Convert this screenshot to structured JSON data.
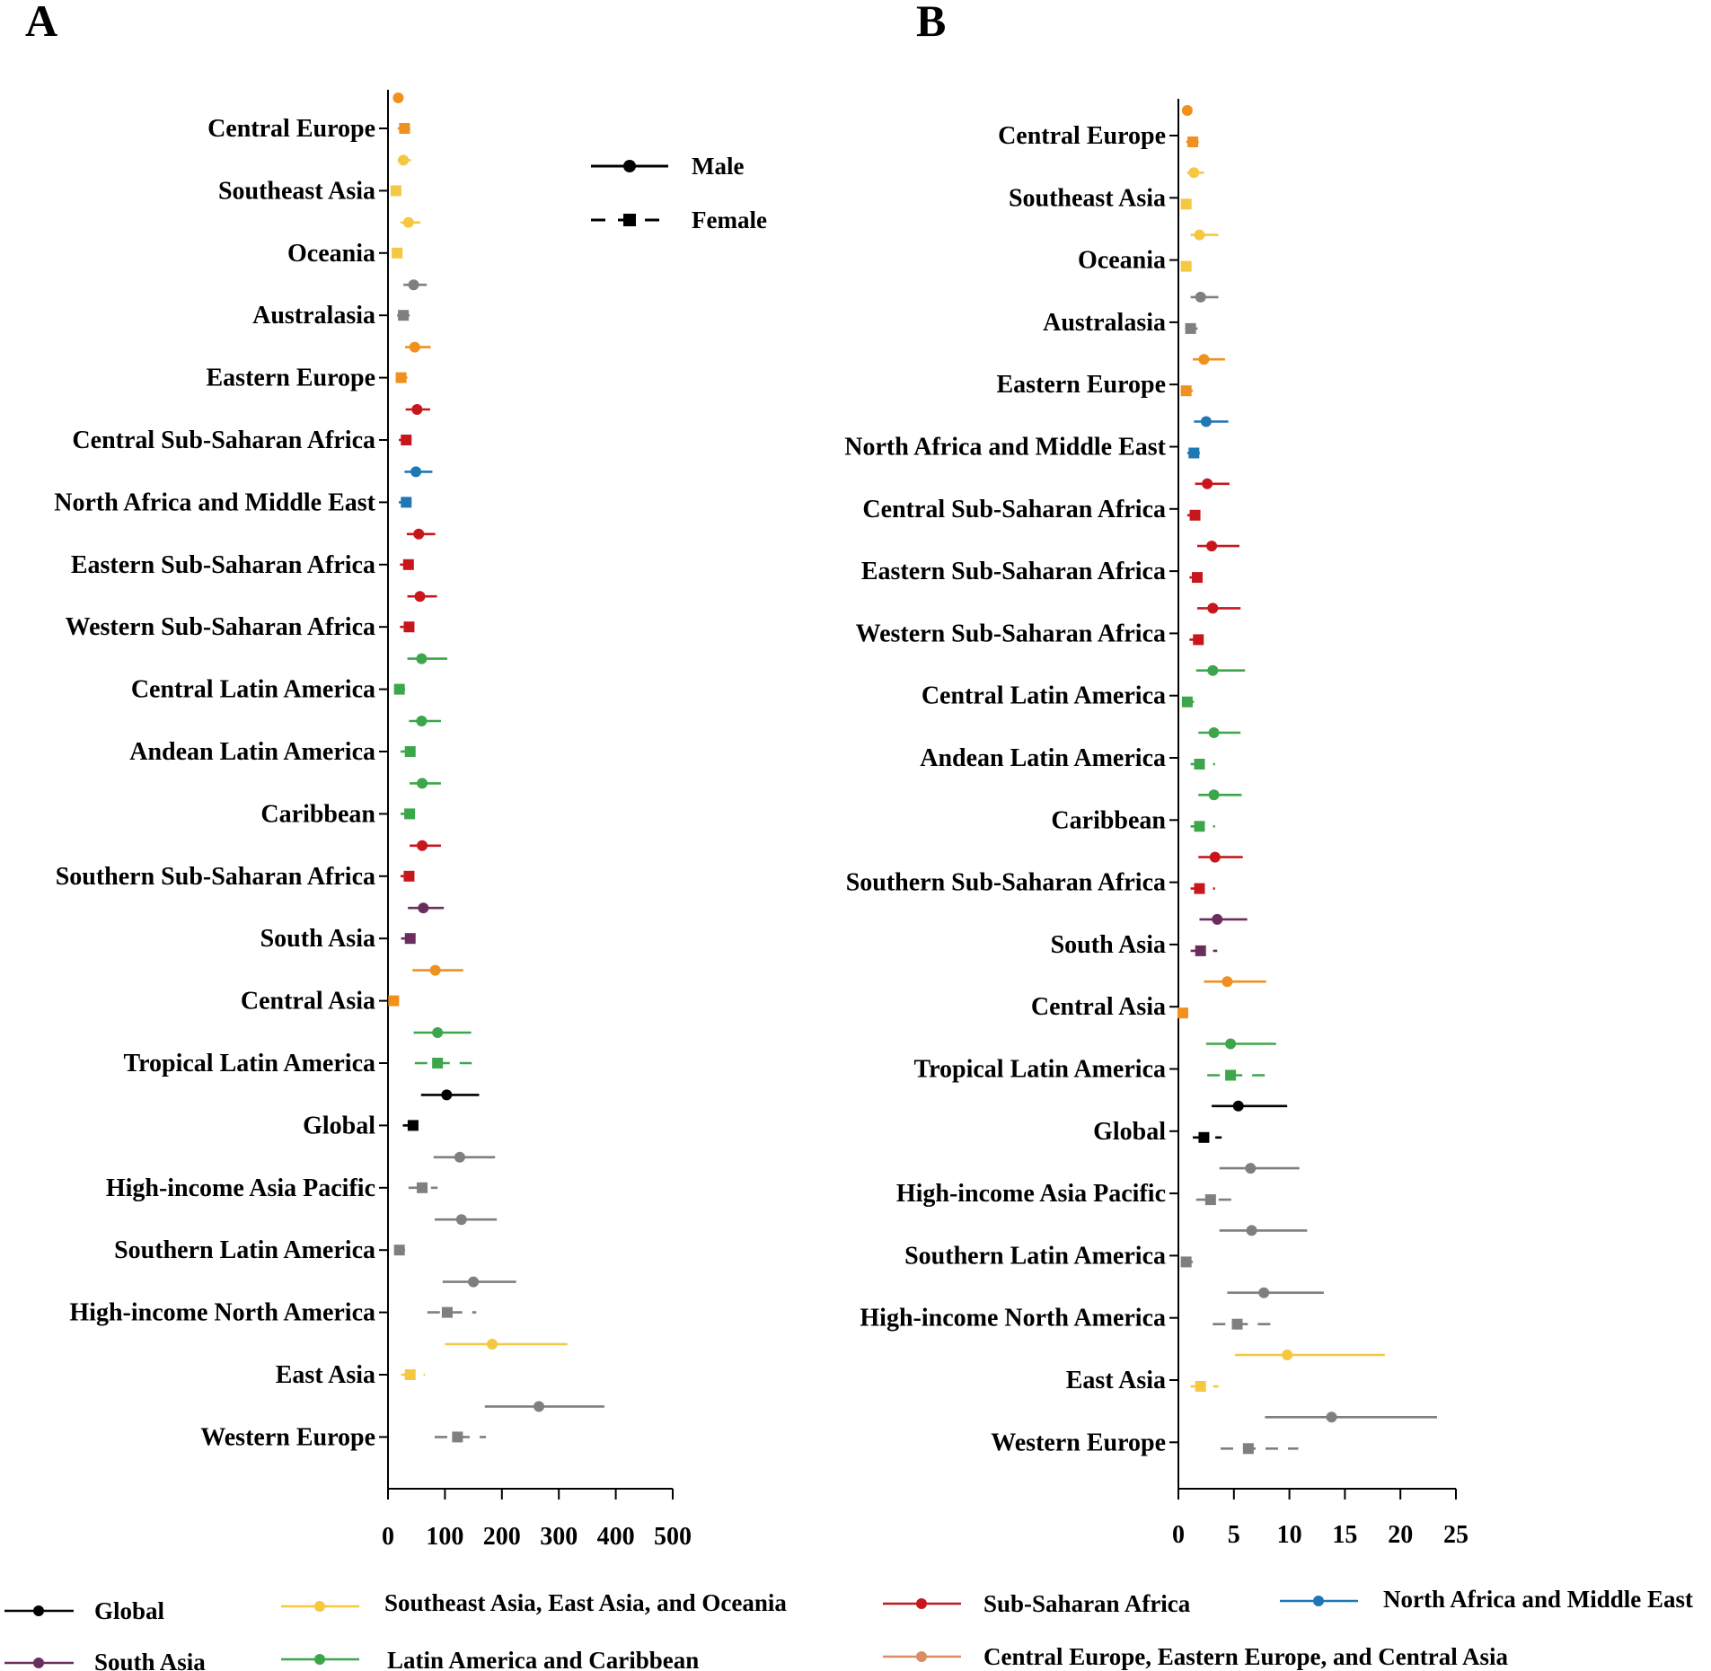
{
  "panels": [
    {
      "letter": "A"
    },
    {
      "letter": "B"
    }
  ],
  "sex_legend": [
    {
      "label": "Male",
      "marker": "circle",
      "dash": "solid"
    },
    {
      "label": "Female",
      "marker": "square",
      "dash": "dashed"
    }
  ],
  "super_region_legend": [
    {
      "label": "Global",
      "color": "#000000"
    },
    {
      "label": "Southeast Asia, East Asia, and Oceania",
      "color": "#F5C842"
    },
    {
      "label": "Sub-Saharan Africa",
      "color": "#C8161D"
    },
    {
      "label": "North Africa and Middle East",
      "color": "#1F77B4"
    },
    {
      "label": "South Asia",
      "color": "#6B2D5C"
    },
    {
      "label": "Latin America and Caribbean",
      "color": "#3DA64A"
    },
    {
      "label": "Central Europe, Eastern Europe, and Central Asia",
      "color": "#D88E62"
    }
  ],
  "colors": {
    "global": "#000000",
    "seao": "#F5C842",
    "ssa": "#C8161D",
    "nafme": "#1F77B4",
    "sa": "#6B2D5C",
    "lac": "#3DA64A",
    "ceeca": "#F0901E",
    "hi": "#7F7F7F"
  },
  "chart_data": [
    {
      "type": "forest",
      "panel": "A",
      "xlim": [
        0,
        500
      ],
      "xticks": [
        0,
        100,
        200,
        300,
        400,
        500
      ],
      "categories": [
        "Central Europe",
        "Southeast Asia",
        "Oceania",
        "Australasia",
        "Eastern Europe",
        "Central Sub-Saharan Africa",
        "North Africa and Middle East",
        "Eastern Sub-Saharan Africa",
        "Western Sub-Saharan Africa",
        "Central Latin America",
        "Andean Latin America",
        "Caribbean",
        "Southern Sub-Saharan Africa",
        "South Asia",
        "Central Asia",
        "Tropical Latin America",
        "Global",
        "High-income Asia Pacific",
        "Southern Latin America",
        "High-income North America",
        "East Asia",
        "Western Europe"
      ],
      "category_colors": [
        "ceeca",
        "seao",
        "seao",
        "hi",
        "ceeca",
        "ssa",
        "nafme",
        "ssa",
        "ssa",
        "lac",
        "lac",
        "lac",
        "ssa",
        "sa",
        "ceeca",
        "lac",
        "global",
        "hi",
        "hi",
        "hi",
        "seao",
        "hi"
      ],
      "series": [
        {
          "name": "Male",
          "values": [
            [
              18,
              13,
              24
            ],
            [
              27,
              17,
              40
            ],
            [
              36,
              22,
              57
            ],
            [
              45,
              27,
              68
            ],
            [
              47,
              30,
              75
            ],
            [
              51,
              31,
              74
            ],
            [
              49,
              29,
              78
            ],
            [
              54,
              33,
              83
            ],
            [
              56,
              34,
              86
            ],
            [
              59,
              34,
              104
            ],
            [
              59,
              37,
              93
            ],
            [
              60,
              38,
              93
            ],
            [
              60,
              38,
              93
            ],
            [
              62,
              35,
              98
            ],
            [
              83,
              43,
              132
            ],
            [
              87,
              45,
              146
            ],
            [
              103,
              58,
              160
            ],
            [
              126,
              80,
              188
            ],
            [
              129,
              82,
              191
            ],
            [
              150,
              96,
              225
            ],
            [
              183,
              100,
              315
            ],
            [
              265,
              170,
              380
            ]
          ]
        },
        {
          "name": "Female",
          "values": [
            [
              29,
              17,
              45
            ],
            [
              14,
              9,
              20
            ],
            [
              16,
              10,
              24
            ],
            [
              27,
              16,
              40
            ],
            [
              23,
              14,
              34
            ],
            [
              32,
              19,
              48
            ],
            [
              32,
              19,
              48
            ],
            [
              36,
              21,
              53
            ],
            [
              37,
              21,
              55
            ],
            [
              20,
              12,
              30
            ],
            [
              39,
              22,
              59
            ],
            [
              38,
              22,
              58
            ],
            [
              37,
              22,
              57
            ],
            [
              39,
              23,
              60
            ],
            [
              10,
              6,
              15
            ],
            [
              87,
              47,
              147
            ],
            [
              44,
              26,
              65
            ],
            [
              60,
              36,
              87
            ],
            [
              20,
              12,
              30
            ],
            [
              104,
              69,
              155
            ],
            [
              39,
              23,
              65
            ],
            [
              122,
              82,
              172
            ]
          ]
        }
      ]
    },
    {
      "type": "forest",
      "panel": "B",
      "xlim": [
        0,
        25
      ],
      "xticks": [
        0,
        5,
        10,
        15,
        20,
        25
      ],
      "categories": [
        "Central Europe",
        "Southeast Asia",
        "Oceania",
        "Australasia",
        "Eastern Europe",
        "North Africa and Middle East",
        "Central Sub-Saharan Africa",
        "Eastern Sub-Saharan Africa",
        "Western Sub-Saharan Africa",
        "Central Latin America",
        "Andean Latin America",
        "Caribbean",
        "Southern Sub-Saharan Africa",
        "South Asia",
        "Central Asia",
        "Tropical Latin America",
        "Global",
        "High-income Asia Pacific",
        "Southern Latin America",
        "High-income North America",
        "East Asia",
        "Western Europe"
      ],
      "category_colors": [
        "ceeca",
        "seao",
        "seao",
        "hi",
        "ceeca",
        "nafme",
        "ssa",
        "ssa",
        "ssa",
        "lac",
        "lac",
        "lac",
        "ssa",
        "sa",
        "ceeca",
        "lac",
        "global",
        "hi",
        "hi",
        "hi",
        "seao",
        "hi"
      ],
      "series": [
        {
          "name": "Male",
          "values": [
            [
              0.8,
              0.5,
              1.2
            ],
            [
              1.4,
              0.8,
              2.3
            ],
            [
              1.9,
              1.1,
              3.6
            ],
            [
              2.0,
              1.1,
              3.6
            ],
            [
              2.3,
              1.3,
              4.2
            ],
            [
              2.5,
              1.4,
              4.5
            ],
            [
              2.6,
              1.5,
              4.6
            ],
            [
              3.0,
              1.7,
              5.5
            ],
            [
              3.1,
              1.7,
              5.6
            ],
            [
              3.1,
              1.6,
              6.0
            ],
            [
              3.2,
              1.8,
              5.6
            ],
            [
              3.2,
              1.8,
              5.7
            ],
            [
              3.3,
              1.8,
              5.8
            ],
            [
              3.5,
              1.9,
              6.2
            ],
            [
              4.4,
              2.3,
              7.9
            ],
            [
              4.7,
              2.5,
              8.8
            ],
            [
              5.4,
              3.0,
              9.8
            ],
            [
              6.5,
              3.7,
              10.9
            ],
            [
              6.6,
              3.7,
              11.6
            ],
            [
              7.7,
              4.4,
              13.1
            ],
            [
              9.8,
              5.1,
              18.6
            ],
            [
              13.8,
              7.8,
              23.3
            ]
          ]
        },
        {
          "name": "Female",
          "values": [
            [
              1.3,
              0.7,
              2.5
            ],
            [
              0.7,
              0.4,
              1.1
            ],
            [
              0.7,
              0.4,
              1.1
            ],
            [
              1.1,
              0.6,
              1.9
            ],
            [
              0.7,
              0.4,
              1.3
            ],
            [
              1.4,
              0.8,
              2.5
            ],
            [
              1.5,
              0.8,
              2.6
            ],
            [
              1.7,
              1.0,
              3.0
            ],
            [
              1.8,
              1.0,
              3.0
            ],
            [
              0.8,
              0.4,
              1.4
            ],
            [
              1.9,
              1.1,
              3.3
            ],
            [
              1.9,
              1.1,
              3.3
            ],
            [
              1.9,
              1.1,
              3.3
            ],
            [
              2.0,
              1.1,
              3.5
            ],
            [
              0.4,
              0.2,
              0.6
            ],
            [
              4.7,
              2.6,
              8.5
            ],
            [
              2.3,
              1.3,
              3.9
            ],
            [
              2.9,
              1.6,
              5.1
            ],
            [
              0.7,
              0.4,
              1.3
            ],
            [
              5.3,
              3.1,
              9.0
            ],
            [
              2.0,
              1.1,
              3.6
            ],
            [
              6.3,
              3.8,
              10.8
            ]
          ]
        }
      ]
    }
  ]
}
